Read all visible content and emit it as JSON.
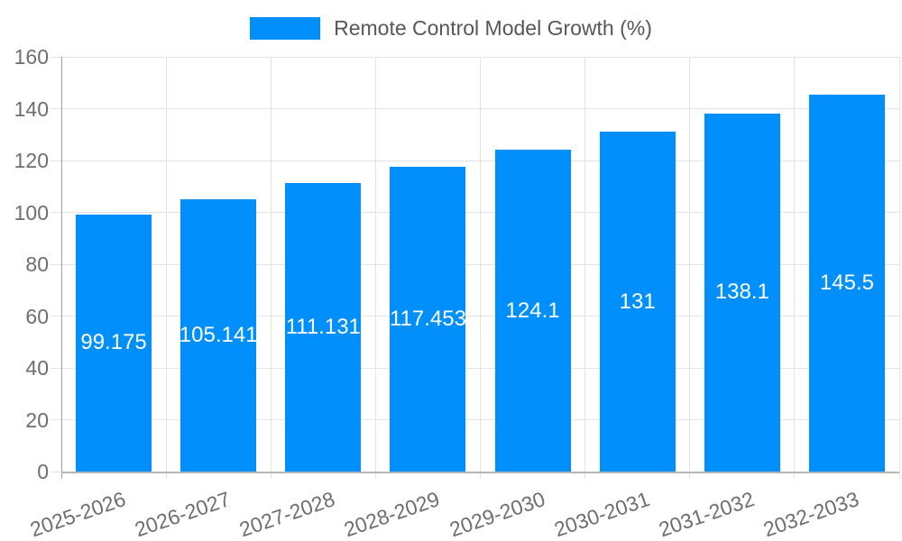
{
  "chart_data": {
    "type": "bar",
    "title": "",
    "series_name": "Remote Control Model Growth (%)",
    "categories": [
      "2025-2026",
      "2026-2027",
      "2027-2028",
      "2028-2029",
      "2029-2030",
      "2030-2031",
      "2031-2032",
      "2032-2033"
    ],
    "values": [
      99.175,
      105.141,
      111.131,
      117.453,
      124.1,
      131,
      138.1,
      145.5
    ],
    "xlabel": "",
    "ylabel": "",
    "ylim": [
      0,
      160
    ],
    "ytick_step": 20,
    "ytick_labels": [
      "0",
      "20",
      "40",
      "60",
      "80",
      "100",
      "120",
      "140",
      "160"
    ],
    "grid": true,
    "legend_position": "top",
    "value_labels_inside_bars": true
  },
  "colors": {
    "bar": "#008FFB",
    "value_label": "#FFFFFF",
    "gridline": "#E3E3E3",
    "y_axis_line": "#9E9E9E",
    "x_axis_line": "#B6B6B6",
    "axis_text": "#6E6E6E",
    "legend_text": "#555759",
    "background": "#FFFFFF"
  }
}
